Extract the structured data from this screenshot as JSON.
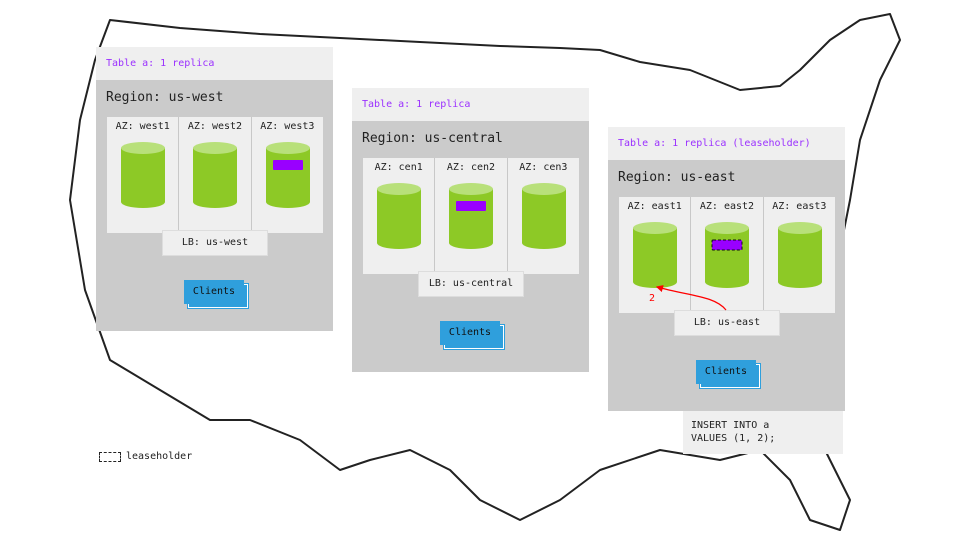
{
  "regions": [
    {
      "table_label": "Table a: 1 replica",
      "name": "Region: us-west",
      "azs": [
        "AZ: west1",
        "AZ: west2",
        "AZ: west3"
      ],
      "lb": "LB: us-west",
      "clients": "Clients",
      "replica_az": 2,
      "leaseholder": false
    },
    {
      "table_label": "Table a: 1 replica",
      "name": "Region: us-central",
      "azs": [
        "AZ: cen1",
        "AZ: cen2",
        "AZ: cen3"
      ],
      "lb": "LB: us-central",
      "clients": "Clients",
      "replica_az": 1,
      "leaseholder": false
    },
    {
      "table_label": "Table a: 1 replica (leaseholder)",
      "name": "Region: us-east",
      "azs": [
        "AZ: east1",
        "AZ: east2",
        "AZ: east3"
      ],
      "lb": "LB: us-east",
      "clients": "Clients",
      "replica_az": 1,
      "leaseholder": true
    }
  ],
  "arrow_label": "2",
  "sql": "INSERT INTO a\nVALUES (1, 2);",
  "legend": {
    "label": "leaseholder"
  },
  "colors": {
    "replica": "#9900ff",
    "cylinder": "#8dc926",
    "cylinder_top": "#b8e07a",
    "clients": "#2f9fdc",
    "table_label": "#9b30ff",
    "arrow": "#ff0000"
  }
}
